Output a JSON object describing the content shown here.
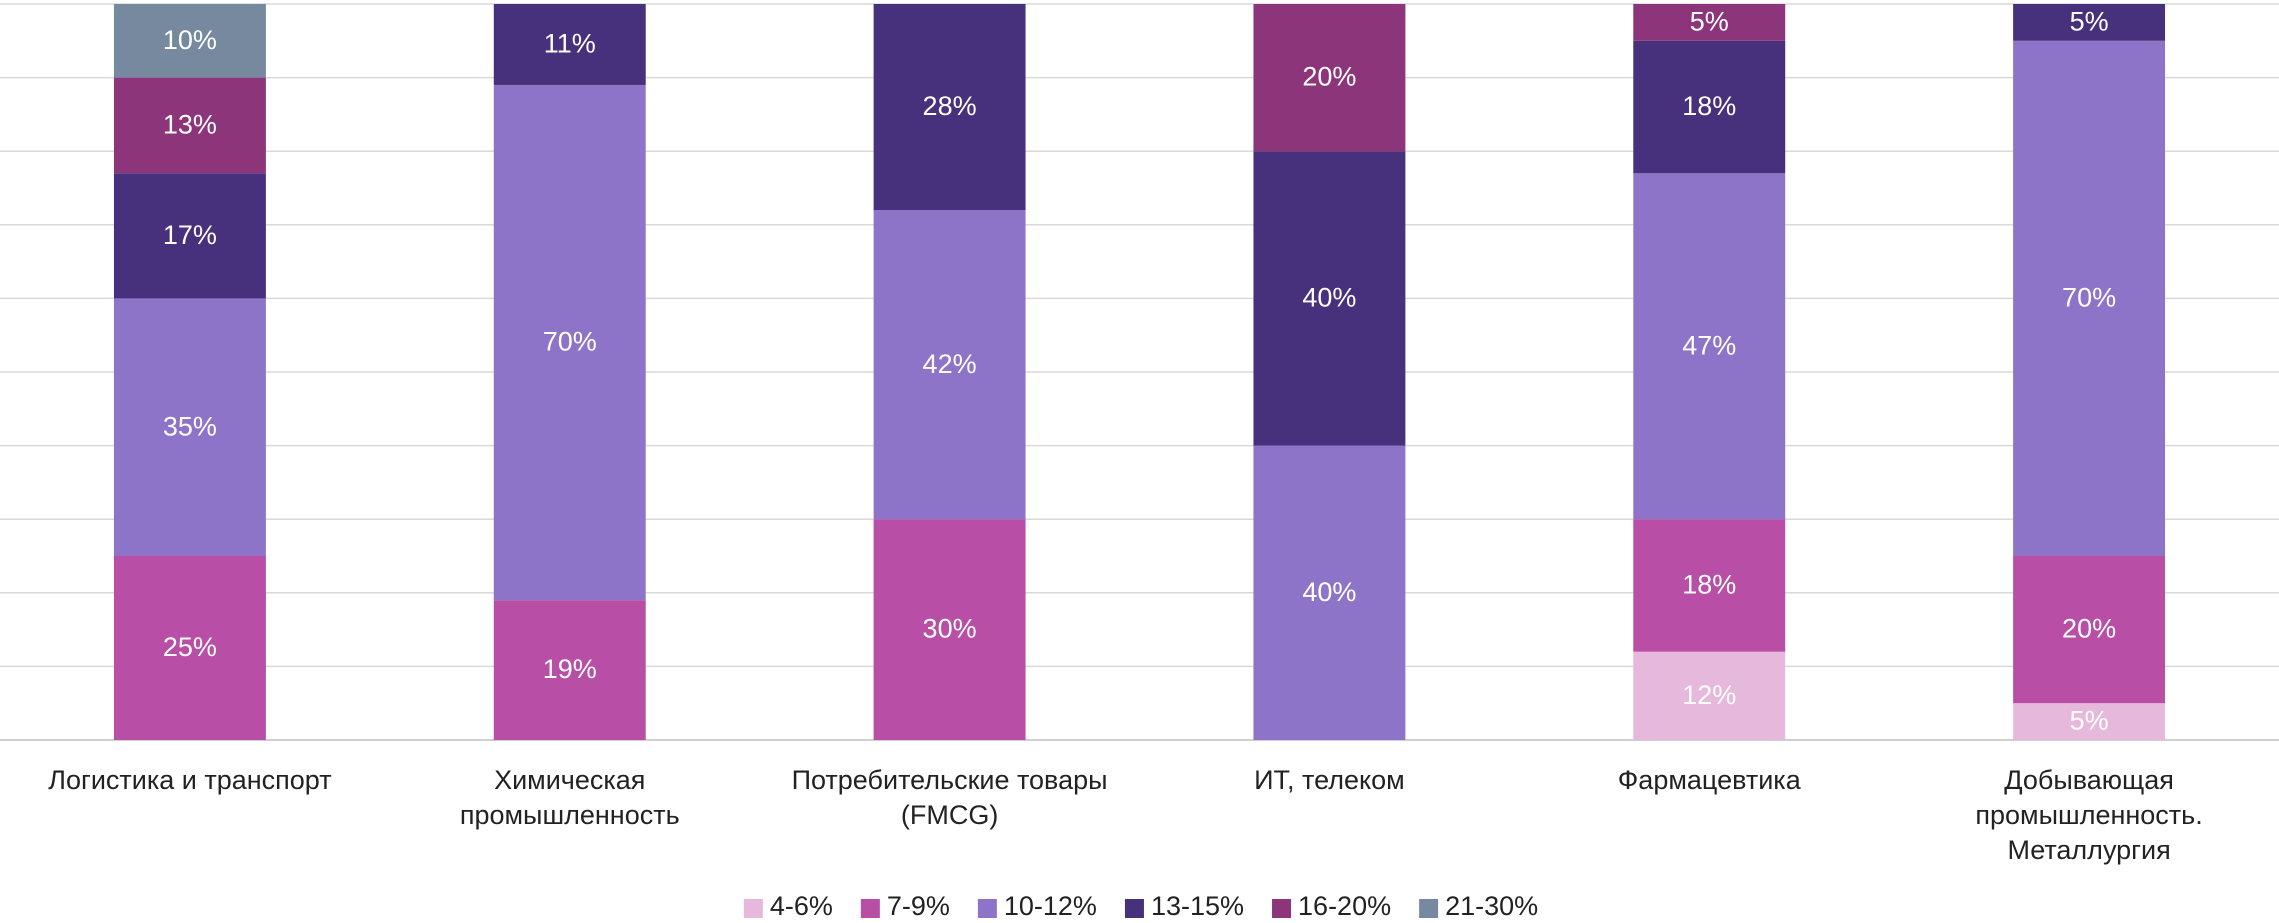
{
  "chart_data": {
    "type": "stacked_bar",
    "categories": [
      "Логистика и транспорт",
      "Химическая промышленность",
      "Потребительские товары (FMCG)",
      "ИТ, телеком",
      "Фармацевтика",
      "Добывающая промышленность. Металлургия"
    ],
    "series": [
      {
        "name": "4-6%",
        "color": "#e6b8dc",
        "values": [
          null,
          null,
          null,
          null,
          12,
          5
        ],
        "value_labels": [
          null,
          null,
          null,
          null,
          "12%",
          "5%"
        ]
      },
      {
        "name": "7-9%",
        "color": "#b84ea6",
        "values": [
          25,
          19,
          30,
          null,
          18,
          20
        ],
        "value_labels": [
          "25%",
          "19%",
          "30%",
          null,
          "18%",
          "20%"
        ]
      },
      {
        "name": "10-12%",
        "color": "#8e74c8",
        "values": [
          35,
          70,
          42,
          40,
          47,
          70
        ],
        "value_labels": [
          "35%",
          "70%",
          "42%",
          "40%",
          "47%",
          "70%"
        ]
      },
      {
        "name": "13-15%",
        "color": "#47307c",
        "values": [
          17,
          11,
          28,
          40,
          18,
          5
        ],
        "value_labels": [
          "17%",
          "11%",
          "28%",
          "40%",
          "18%",
          "5%"
        ]
      },
      {
        "name": "16-20%",
        "color": "#8d357a",
        "values": [
          13,
          null,
          null,
          20,
          5,
          null
        ],
        "value_labels": [
          "13%",
          null,
          null,
          "20%",
          "5%",
          null
        ]
      },
      {
        "name": "21-30%",
        "color": "#76899f",
        "values": [
          10,
          null,
          null,
          null,
          null,
          null
        ],
        "value_labels": [
          "10%",
          null,
          null,
          null,
          null,
          null
        ]
      }
    ],
    "ylim": [
      0,
      100
    ],
    "yticks": [
      0,
      10,
      20,
      30,
      40,
      50,
      60,
      70,
      80,
      90,
      100
    ],
    "grid": true,
    "legend": "bottom"
  }
}
